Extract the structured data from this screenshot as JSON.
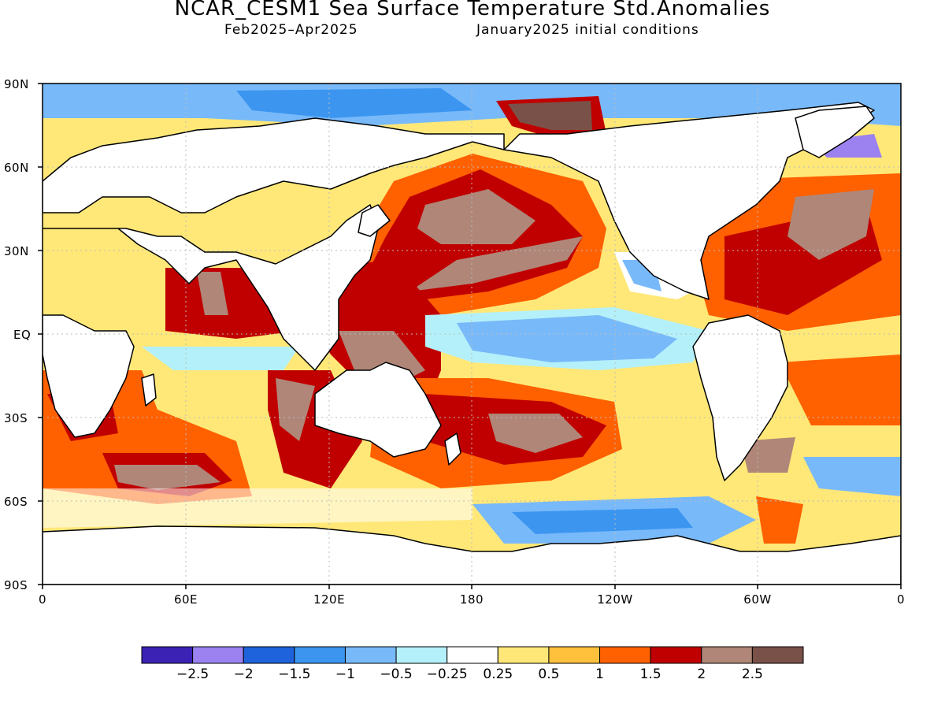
{
  "header": {
    "title": "NCAR_CESM1 Sea Surface Temperature Std.Anomalies",
    "period": "Feb2025–Apr2025",
    "init": "January2025 initial conditions"
  },
  "axes": {
    "lat_labels": [
      "90N",
      "60N",
      "30N",
      "EQ",
      "30S",
      "60S",
      "90S"
    ],
    "lon_labels": [
      "0",
      "60E",
      "120E",
      "180",
      "120W",
      "60W",
      "0"
    ]
  },
  "colorbar": {
    "colors": [
      "#3c22b4",
      "#9b82f0",
      "#1e63dc",
      "#3c96f0",
      "#78b9fa",
      "#b4f0fa",
      "#ffffff",
      "#ffe878",
      "#ffc03c",
      "#ff6000",
      "#c00000",
      "#af8678",
      "#7a5148"
    ],
    "labels": [
      "−2.5",
      "−2",
      "−1.5",
      "−1",
      "−0.5",
      "−0.25",
      "0.25",
      "0.5",
      "1",
      "1.5",
      "2",
      "2.5"
    ]
  },
  "map": {
    "land_color": "#ffffff",
    "coastline_color": "#000000",
    "gridline_color": "#bbbbbb",
    "gridlines": "dotted"
  }
}
